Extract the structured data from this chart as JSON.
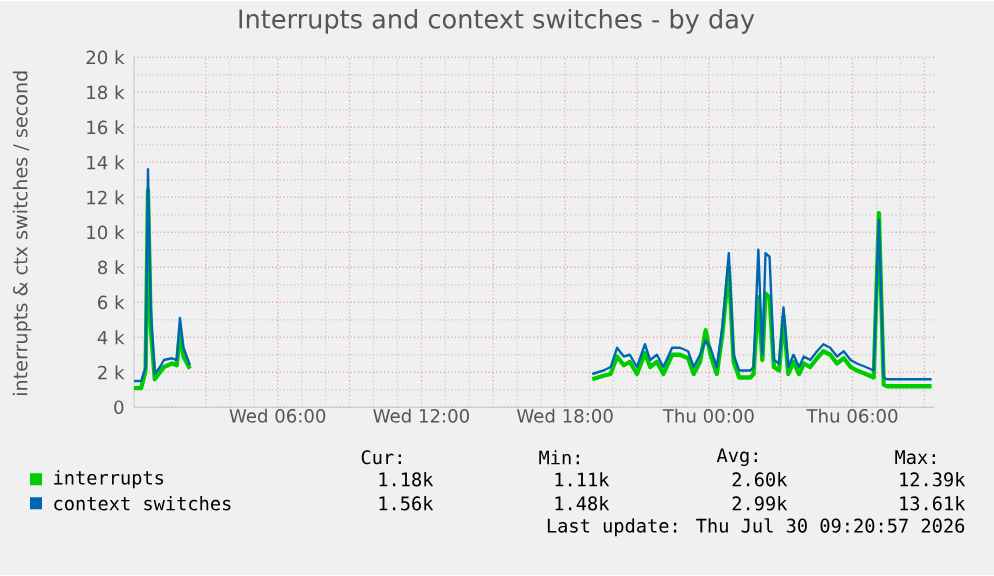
{
  "chart_data": {
    "type": "line",
    "title": "Interrupts and context switches - by day",
    "ylabel": "interrupts & ctx switches / second",
    "x": [
      "2026-07-29T00:00",
      "2026-07-29T00:18",
      "2026-07-29T00:29",
      "2026-07-29T00:35",
      "2026-07-29T00:42",
      "2026-07-29T00:52",
      "2026-07-29T01:05",
      "2026-07-29T01:15",
      "2026-07-29T01:35",
      "2026-07-29T01:47",
      "2026-07-29T01:55",
      "2026-07-29T02:04",
      "2026-07-29T02:20",
      "2026-07-29T12:00",
      "2026-07-29T19:08",
      "2026-07-29T19:36",
      "2026-07-29T19:54",
      "2026-07-29T20:10",
      "2026-07-29T20:27",
      "2026-07-29T20:42",
      "2026-07-29T21:00",
      "2026-07-29T21:20",
      "2026-07-29T21:33",
      "2026-07-29T21:50",
      "2026-07-29T22:06",
      "2026-07-29T22:28",
      "2026-07-29T22:48",
      "2026-07-29T23:08",
      "2026-07-29T23:22",
      "2026-07-29T23:38",
      "2026-07-29T23:52",
      "2026-07-30T00:04",
      "2026-07-30T00:20",
      "2026-07-30T00:34",
      "2026-07-30T00:50",
      "2026-07-30T01:02",
      "2026-07-30T01:16",
      "2026-07-30T01:44",
      "2026-07-30T01:52",
      "2026-07-30T02:04",
      "2026-07-30T02:14",
      "2026-07-30T02:22",
      "2026-07-30T02:32",
      "2026-07-30T02:43",
      "2026-07-30T02:56",
      "2026-07-30T03:07",
      "2026-07-30T03:19",
      "2026-07-30T03:32",
      "2026-07-30T03:46",
      "2026-07-30T03:58",
      "2026-07-30T04:14",
      "2026-07-30T04:31",
      "2026-07-30T04:47",
      "2026-07-30T05:04",
      "2026-07-30T05:21",
      "2026-07-30T05:38",
      "2026-07-30T05:55",
      "2026-07-30T06:11",
      "2026-07-30T06:33",
      "2026-07-30T06:53",
      "2026-07-30T07:06",
      "2026-07-30T07:18",
      "2026-07-30T07:26",
      "2026-07-30T08:33",
      "2026-07-30T09:18"
    ],
    "series": [
      {
        "name": "interrupts",
        "color": "#00cc00",
        "values": [
          1100,
          1100,
          2100,
          12400,
          4500,
          1600,
          2000,
          2300,
          2500,
          2400,
          4200,
          2900,
          2200,
          null,
          1600,
          1800,
          1900,
          2900,
          2400,
          2600,
          1900,
          3100,
          2300,
          2600,
          1900,
          3000,
          3000,
          2800,
          1900,
          2600,
          4400,
          3000,
          1900,
          4200,
          8000,
          2600,
          1700,
          1700,
          1900,
          6300,
          2700,
          6500,
          6300,
          2300,
          2100,
          5200,
          1900,
          2600,
          1900,
          2500,
          2300,
          2800,
          3200,
          3000,
          2500,
          2800,
          2300,
          2100,
          1900,
          1700,
          11100,
          1300,
          1200,
          1200,
          1200
        ]
      },
      {
        "name": "context switches",
        "color": "#0066b3",
        "values": [
          1500,
          1500,
          2300,
          13600,
          5700,
          1900,
          2300,
          2700,
          2800,
          2700,
          5100,
          3400,
          2400,
          null,
          1900,
          2100,
          2300,
          3400,
          2900,
          3000,
          2300,
          3600,
          2700,
          3000,
          2300,
          3400,
          3400,
          3200,
          2300,
          3000,
          3800,
          3400,
          2300,
          4600,
          8800,
          3000,
          2100,
          2100,
          2300,
          9000,
          3000,
          8800,
          8600,
          2700,
          2500,
          5700,
          2300,
          3000,
          2300,
          2900,
          2700,
          3200,
          3600,
          3400,
          2900,
          3200,
          2700,
          2500,
          2300,
          2100,
          10700,
          1700,
          1600,
          1600,
          1600
        ]
      }
    ],
    "xlim": [
      "2026-07-29T00:00",
      "2026-07-30T09:24"
    ],
    "xticks": [
      {
        "value": "2026-07-29T03:00",
        "label": null
      },
      {
        "value": "2026-07-29T06:00",
        "label": "Wed 06:00"
      },
      {
        "value": "2026-07-29T09:00",
        "label": null
      },
      {
        "value": "2026-07-29T12:00",
        "label": "Wed 12:00"
      },
      {
        "value": "2026-07-29T15:00",
        "label": null
      },
      {
        "value": "2026-07-29T18:00",
        "label": "Wed 18:00"
      },
      {
        "value": "2026-07-29T21:00",
        "label": null
      },
      {
        "value": "2026-07-30T00:00",
        "label": "Thu 00:00"
      },
      {
        "value": "2026-07-30T03:00",
        "label": null
      },
      {
        "value": "2026-07-30T06:00",
        "label": "Thu 06:00"
      },
      {
        "value": "2026-07-30T09:00",
        "label": null
      }
    ],
    "ylim": [
      0,
      20000
    ],
    "yticks": [
      {
        "value": 0,
        "label": "0"
      },
      {
        "value": 2000,
        "label": "2 k"
      },
      {
        "value": 4000,
        "label": "4 k"
      },
      {
        "value": 6000,
        "label": "6 k"
      },
      {
        "value": 8000,
        "label": "8 k"
      },
      {
        "value": 10000,
        "label": "10 k"
      },
      {
        "value": 12000,
        "label": "12 k"
      },
      {
        "value": 14000,
        "label": "14 k"
      },
      {
        "value": 16000,
        "label": "16 k"
      },
      {
        "value": 18000,
        "label": "18 k"
      },
      {
        "value": 20000,
        "label": "20 k"
      }
    ],
    "grid": true,
    "legend": "bottom",
    "marker": "none",
    "line_style": "solid",
    "annotations": [
      "Cur:",
      "Min:",
      "Avg:",
      "Max:",
      "1.18k",
      "1.11k",
      "2.60k",
      "12.39k",
      "1.56k",
      "1.48k",
      "2.99k",
      "13.61k",
      "Last update: Thu Jul 30 09:20:57 2026"
    ]
  }
}
